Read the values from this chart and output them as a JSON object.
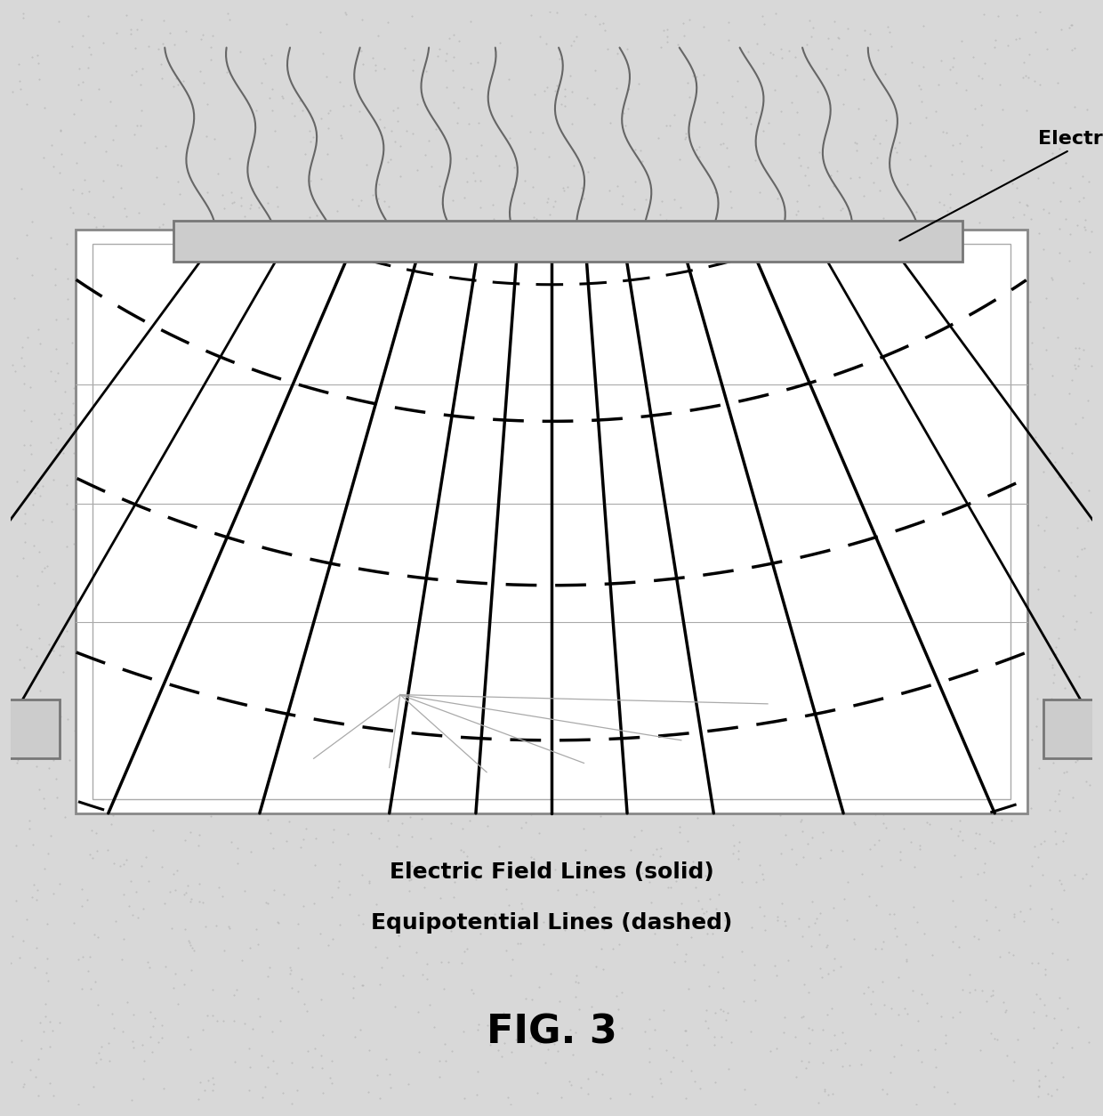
{
  "fig_width": 12.4,
  "fig_height": 12.54,
  "bg_color": "#d8d8d8",
  "title": "FIG. 3",
  "label1": "Electric Field Lines (solid)",
  "label2": "Equipotential Lines (dashed)",
  "electrode_label": "Electrode",
  "note": "patent diagram FIG.3 electric field and equipotential lines"
}
